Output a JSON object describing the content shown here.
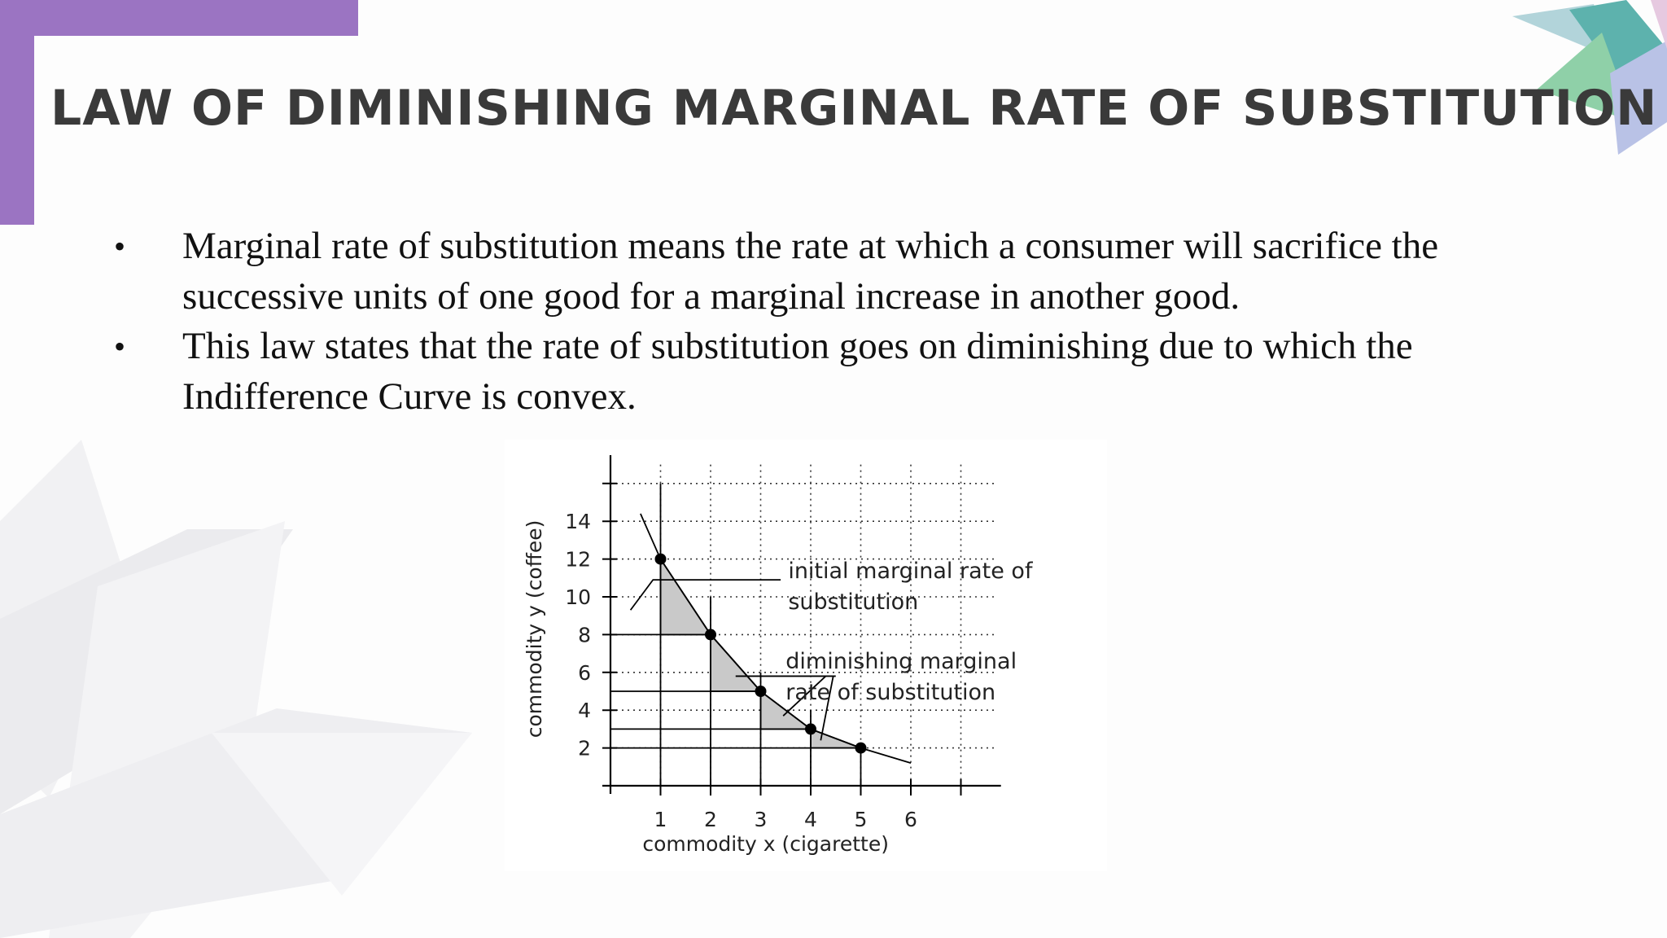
{
  "title": "LAW OF DIMINISHING MARGINAL RATE OF SUBSTITUTION",
  "bullets": [
    "Marginal rate of substitution means the rate at which a consumer will sacrifice the successive units of one good for a marginal increase in another good.",
    "This law states that the rate of substitution goes on diminishing due to which the Indifference Curve is convex."
  ],
  "bullet_symbol": "•",
  "colors": {
    "accent": "#9b74c2",
    "title": "#3a3a3a",
    "shade": "#c9c9c9"
  },
  "chart_data": {
    "type": "line",
    "xlabel": "commodity x (cigarette)",
    "ylabel": "commodity y (coffee)",
    "x_ticks": [
      "1",
      "2",
      "3",
      "4",
      "5",
      "6"
    ],
    "y_ticks": [
      "2",
      "4",
      "6",
      "8",
      "10",
      "12",
      "14"
    ],
    "xlim": [
      0,
      7
    ],
    "ylim": [
      0,
      16
    ],
    "grid": "dotted",
    "curve": [
      {
        "x": 0.6,
        "y": 14.4
      },
      {
        "x": 1,
        "y": 12
      },
      {
        "x": 2,
        "y": 8
      },
      {
        "x": 3,
        "y": 5
      },
      {
        "x": 4,
        "y": 3
      },
      {
        "x": 5,
        "y": 2
      },
      {
        "x": 6,
        "y": 1.2
      }
    ],
    "points": [
      {
        "x": 1,
        "y": 12
      },
      {
        "x": 2,
        "y": 8
      },
      {
        "x": 3,
        "y": 5
      },
      {
        "x": 4,
        "y": 3
      },
      {
        "x": 5,
        "y": 2
      }
    ],
    "annotations": [
      {
        "lines": [
          "initial marginal rate of",
          "substitution"
        ]
      },
      {
        "lines": [
          "diminishing marginal",
          "rate of substitution"
        ]
      }
    ]
  }
}
